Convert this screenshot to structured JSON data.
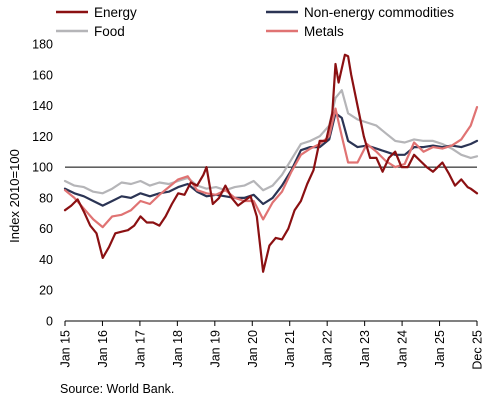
{
  "chart_data": {
    "type": "line",
    "ylabel": "Index 2010=100",
    "ylim": [
      0,
      180
    ],
    "yticks": [
      0,
      20,
      40,
      60,
      80,
      100,
      120,
      140,
      160,
      180
    ],
    "xlim": [
      "2015-01",
      "2025-12"
    ],
    "xtick_labels": [
      "Jan 15",
      "Jan 16",
      "Jan 17",
      "Jan 18",
      "Jan 19",
      "Jan 20",
      "Jan 21",
      "Jan 22",
      "Jan 23",
      "Jan 24",
      "Jan 25",
      "Dec 25"
    ],
    "reference_line": 100,
    "grid": false,
    "legend_position": "top",
    "source": "Source: World Bank.",
    "series": [
      {
        "name": "Food",
        "color": "#b5b5b8",
        "points": [
          [
            "2015-01",
            91
          ],
          [
            "2015-04",
            88
          ],
          [
            "2015-07",
            87
          ],
          [
            "2015-10",
            84
          ],
          [
            "2016-01",
            83
          ],
          [
            "2016-04",
            86
          ],
          [
            "2016-07",
            90
          ],
          [
            "2016-10",
            89
          ],
          [
            "2017-01",
            91
          ],
          [
            "2017-04",
            88
          ],
          [
            "2017-07",
            90
          ],
          [
            "2017-10",
            89
          ],
          [
            "2018-01",
            91
          ],
          [
            "2018-04",
            93
          ],
          [
            "2018-07",
            88
          ],
          [
            "2018-10",
            86
          ],
          [
            "2019-01",
            87
          ],
          [
            "2019-04",
            85
          ],
          [
            "2019-07",
            87
          ],
          [
            "2019-10",
            88
          ],
          [
            "2020-01",
            91
          ],
          [
            "2020-04",
            85
          ],
          [
            "2020-07",
            88
          ],
          [
            "2020-10",
            95
          ],
          [
            "2021-01",
            105
          ],
          [
            "2021-04",
            115
          ],
          [
            "2021-07",
            117
          ],
          [
            "2021-10",
            120
          ],
          [
            "2022-01",
            127
          ],
          [
            "2022-03",
            145
          ],
          [
            "2022-05",
            150
          ],
          [
            "2022-07",
            135
          ],
          [
            "2022-10",
            131
          ],
          [
            "2023-01",
            129
          ],
          [
            "2023-04",
            127
          ],
          [
            "2023-07",
            122
          ],
          [
            "2023-10",
            117
          ],
          [
            "2024-01",
            116
          ],
          [
            "2024-04",
            118
          ],
          [
            "2024-07",
            117
          ],
          [
            "2024-10",
            117
          ],
          [
            "2025-01",
            115
          ],
          [
            "2025-04",
            112
          ],
          [
            "2025-07",
            108
          ],
          [
            "2025-10",
            106
          ],
          [
            "2025-12",
            107
          ]
        ]
      },
      {
        "name": "Non-energy commodities",
        "color": "#2b3454",
        "points": [
          [
            "2015-01",
            86
          ],
          [
            "2015-04",
            83
          ],
          [
            "2015-07",
            81
          ],
          [
            "2015-10",
            78
          ],
          [
            "2016-01",
            75
          ],
          [
            "2016-04",
            78
          ],
          [
            "2016-07",
            81
          ],
          [
            "2016-10",
            80
          ],
          [
            "2017-01",
            83
          ],
          [
            "2017-04",
            81
          ],
          [
            "2017-07",
            83
          ],
          [
            "2017-10",
            84
          ],
          [
            "2018-01",
            87
          ],
          [
            "2018-04",
            89
          ],
          [
            "2018-07",
            84
          ],
          [
            "2018-10",
            81
          ],
          [
            "2019-01",
            82
          ],
          [
            "2019-04",
            81
          ],
          [
            "2019-07",
            80
          ],
          [
            "2019-10",
            80
          ],
          [
            "2020-01",
            82
          ],
          [
            "2020-04",
            76
          ],
          [
            "2020-07",
            80
          ],
          [
            "2020-10",
            88
          ],
          [
            "2021-01",
            98
          ],
          [
            "2021-04",
            111
          ],
          [
            "2021-07",
            113
          ],
          [
            "2021-10",
            113
          ],
          [
            "2022-01",
            118
          ],
          [
            "2022-03",
            135
          ],
          [
            "2022-05",
            132
          ],
          [
            "2022-07",
            117
          ],
          [
            "2022-10",
            113
          ],
          [
            "2023-01",
            114
          ],
          [
            "2023-04",
            112
          ],
          [
            "2023-07",
            110
          ],
          [
            "2023-10",
            108
          ],
          [
            "2024-01",
            108
          ],
          [
            "2024-04",
            113
          ],
          [
            "2024-07",
            113
          ],
          [
            "2024-10",
            114
          ],
          [
            "2025-01",
            113
          ],
          [
            "2025-04",
            114
          ],
          [
            "2025-07",
            113
          ],
          [
            "2025-10",
            115
          ],
          [
            "2025-12",
            117
          ]
        ]
      },
      {
        "name": "Metals",
        "color": "#e07373",
        "points": [
          [
            "2015-01",
            85
          ],
          [
            "2015-04",
            80
          ],
          [
            "2015-07",
            73
          ],
          [
            "2015-10",
            66
          ],
          [
            "2016-01",
            61
          ],
          [
            "2016-04",
            68
          ],
          [
            "2016-07",
            69
          ],
          [
            "2016-10",
            72
          ],
          [
            "2017-01",
            78
          ],
          [
            "2017-04",
            76
          ],
          [
            "2017-07",
            82
          ],
          [
            "2017-10",
            87
          ],
          [
            "2018-01",
            92
          ],
          [
            "2018-04",
            94
          ],
          [
            "2018-07",
            85
          ],
          [
            "2018-10",
            83
          ],
          [
            "2019-01",
            82
          ],
          [
            "2019-04",
            85
          ],
          [
            "2019-07",
            80
          ],
          [
            "2019-10",
            78
          ],
          [
            "2020-01",
            78
          ],
          [
            "2020-04",
            66
          ],
          [
            "2020-07",
            77
          ],
          [
            "2020-10",
            84
          ],
          [
            "2021-01",
            97
          ],
          [
            "2021-04",
            108
          ],
          [
            "2021-07",
            112
          ],
          [
            "2021-10",
            115
          ],
          [
            "2022-01",
            120
          ],
          [
            "2022-03",
            138
          ],
          [
            "2022-05",
            120
          ],
          [
            "2022-07",
            103
          ],
          [
            "2022-10",
            103
          ],
          [
            "2023-01",
            115
          ],
          [
            "2023-04",
            110
          ],
          [
            "2023-07",
            104
          ],
          [
            "2023-10",
            100
          ],
          [
            "2024-01",
            102
          ],
          [
            "2024-04",
            116
          ],
          [
            "2024-07",
            110
          ],
          [
            "2024-10",
            113
          ],
          [
            "2025-01",
            112
          ],
          [
            "2025-04",
            114
          ],
          [
            "2025-07",
            118
          ],
          [
            "2025-10",
            127
          ],
          [
            "2025-12",
            139
          ]
        ]
      },
      {
        "name": "Energy",
        "color": "#8b1012",
        "points": [
          [
            "2015-01",
            72
          ],
          [
            "2015-03",
            75
          ],
          [
            "2015-05",
            79
          ],
          [
            "2015-07",
            71
          ],
          [
            "2015-09",
            62
          ],
          [
            "2015-11",
            57
          ],
          [
            "2016-01",
            41
          ],
          [
            "2016-03",
            48
          ],
          [
            "2016-05",
            57
          ],
          [
            "2016-07",
            58
          ],
          [
            "2016-09",
            59
          ],
          [
            "2016-11",
            62
          ],
          [
            "2017-01",
            68
          ],
          [
            "2017-03",
            64
          ],
          [
            "2017-05",
            64
          ],
          [
            "2017-07",
            62
          ],
          [
            "2017-09",
            68
          ],
          [
            "2017-11",
            76
          ],
          [
            "2018-01",
            83
          ],
          [
            "2018-03",
            82
          ],
          [
            "2018-05",
            90
          ],
          [
            "2018-07",
            88
          ],
          [
            "2018-09",
            95
          ],
          [
            "2018-10",
            100
          ],
          [
            "2018-12",
            76
          ],
          [
            "2019-02",
            80
          ],
          [
            "2019-04",
            88
          ],
          [
            "2019-06",
            80
          ],
          [
            "2019-08",
            75
          ],
          [
            "2019-10",
            78
          ],
          [
            "2019-12",
            81
          ],
          [
            "2020-02",
            68
          ],
          [
            "2020-04",
            32
          ],
          [
            "2020-06",
            49
          ],
          [
            "2020-08",
            54
          ],
          [
            "2020-10",
            53
          ],
          [
            "2020-12",
            60
          ],
          [
            "2021-02",
            72
          ],
          [
            "2021-04",
            78
          ],
          [
            "2021-06",
            89
          ],
          [
            "2021-08",
            98
          ],
          [
            "2021-10",
            117
          ],
          [
            "2021-12",
            117
          ],
          [
            "2022-02",
            135
          ],
          [
            "2022-03",
            167
          ],
          [
            "2022-04",
            155
          ],
          [
            "2022-06",
            173
          ],
          [
            "2022-07",
            172
          ],
          [
            "2022-08",
            160
          ],
          [
            "2022-10",
            140
          ],
          [
            "2022-12",
            120
          ],
          [
            "2023-02",
            106
          ],
          [
            "2023-04",
            106
          ],
          [
            "2023-06",
            97
          ],
          [
            "2023-08",
            106
          ],
          [
            "2023-10",
            110
          ],
          [
            "2023-12",
            100
          ],
          [
            "2024-02",
            100
          ],
          [
            "2024-04",
            108
          ],
          [
            "2024-06",
            104
          ],
          [
            "2024-08",
            100
          ],
          [
            "2024-10",
            97
          ],
          [
            "2024-12",
            101
          ],
          [
            "2025-01",
            103
          ],
          [
            "2025-03",
            96
          ],
          [
            "2025-05",
            88
          ],
          [
            "2025-07",
            92
          ],
          [
            "2025-09",
            87
          ],
          [
            "2025-10",
            86
          ],
          [
            "2025-12",
            83
          ]
        ]
      }
    ],
    "legend": [
      {
        "label": "Energy",
        "color": "#8b1012"
      },
      {
        "label": "Non-energy commodities",
        "color": "#2b3454"
      },
      {
        "label": "Food",
        "color": "#b5b5b8"
      },
      {
        "label": "Metals",
        "color": "#e07373"
      }
    ]
  }
}
